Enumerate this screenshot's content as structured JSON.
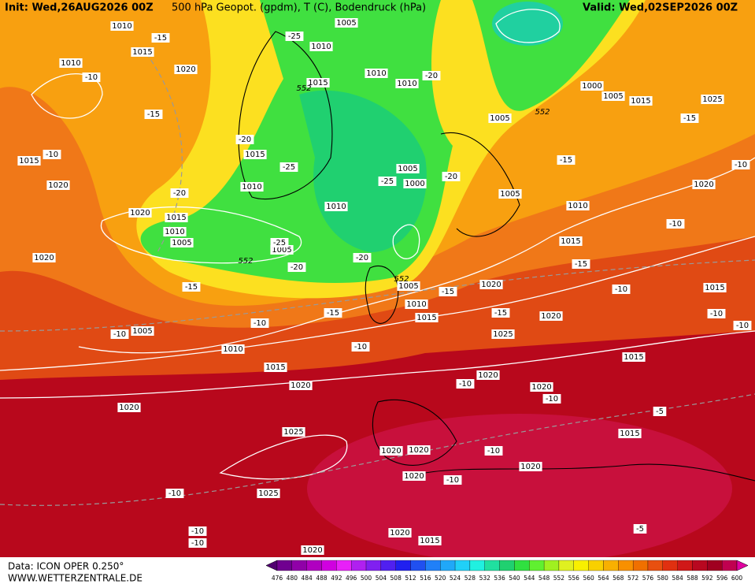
{
  "header": {
    "init": "Init: Wed,26AUG2026 00Z",
    "title": "500 hPa Geopot. (gpdm), T (C), Bodendruck (hPa)",
    "valid": "Valid: Wed,02SEP2026 00Z"
  },
  "footer": {
    "data": "Data: ICON OPER 0.250°",
    "site": "WWW.WETTERZENTRALE.DE"
  },
  "colorbar": {
    "levels": [
      476,
      480,
      484,
      488,
      492,
      496,
      500,
      504,
      508,
      512,
      516,
      520,
      524,
      528,
      532,
      536,
      540,
      544,
      548,
      552,
      556,
      560,
      564,
      568,
      572,
      576,
      580,
      584,
      588,
      592,
      596,
      600
    ],
    "colors": [
      "#500070",
      "#700090",
      "#9000a8",
      "#b000c0",
      "#d000e0",
      "#e820f8",
      "#b020f0",
      "#8020f0",
      "#5020f0",
      "#2020f0",
      "#2050f0",
      "#2080f8",
      "#20a8f8",
      "#20d0f8",
      "#20f0e0",
      "#20e0a0",
      "#20d070",
      "#30e040",
      "#60f030",
      "#a0f020",
      "#e0f020",
      "#f8f000",
      "#f8d000",
      "#f8b000",
      "#f89000",
      "#f07000",
      "#e85010",
      "#e03010",
      "#d01818",
      "#b80820",
      "#a00020",
      "#c00050",
      "#e000a0"
    ]
  },
  "map": {
    "isobar_labels": [
      "1010",
      "1015",
      "1010",
      "1020",
      "1005",
      "1010",
      "1015",
      "1010",
      "1010",
      "1000",
      "1005",
      "1015",
      "1025",
      "1005",
      "1015",
      "1015",
      "1020",
      "1010",
      "1005",
      "1000",
      "1010",
      "1020",
      "1015",
      "1010",
      "1005",
      "1005",
      "1010",
      "1020",
      "1005",
      "1015",
      "1020",
      "1020",
      "1005",
      "1010",
      "1015",
      "1015",
      "1020",
      "1025",
      "1005",
      "1010",
      "1015",
      "1015",
      "1020",
      "1020",
      "1020",
      "1020",
      "1025",
      "1015",
      "1020",
      "1020",
      "1020",
      "1020",
      "1025",
      "1020",
      "1015",
      "1020"
    ],
    "temperature_labels": [
      "-15",
      "-25",
      "-10",
      "-20",
      "-15",
      "-15",
      "-20",
      "-10",
      "-25",
      "-15",
      "-10",
      "-20",
      "-25",
      "-20",
      "-10",
      "-25",
      "-20",
      "-15",
      "-20",
      "-15",
      "-10",
      "-15",
      "-15",
      "-15",
      "-10",
      "-10",
      "-10",
      "-10",
      "-10",
      "-10",
      "-10",
      "-5",
      "-10",
      "-10",
      "-10",
      "-10",
      "-10",
      "-5"
    ],
    "height_labels": [
      "552",
      "552",
      "552",
      "552"
    ]
  }
}
